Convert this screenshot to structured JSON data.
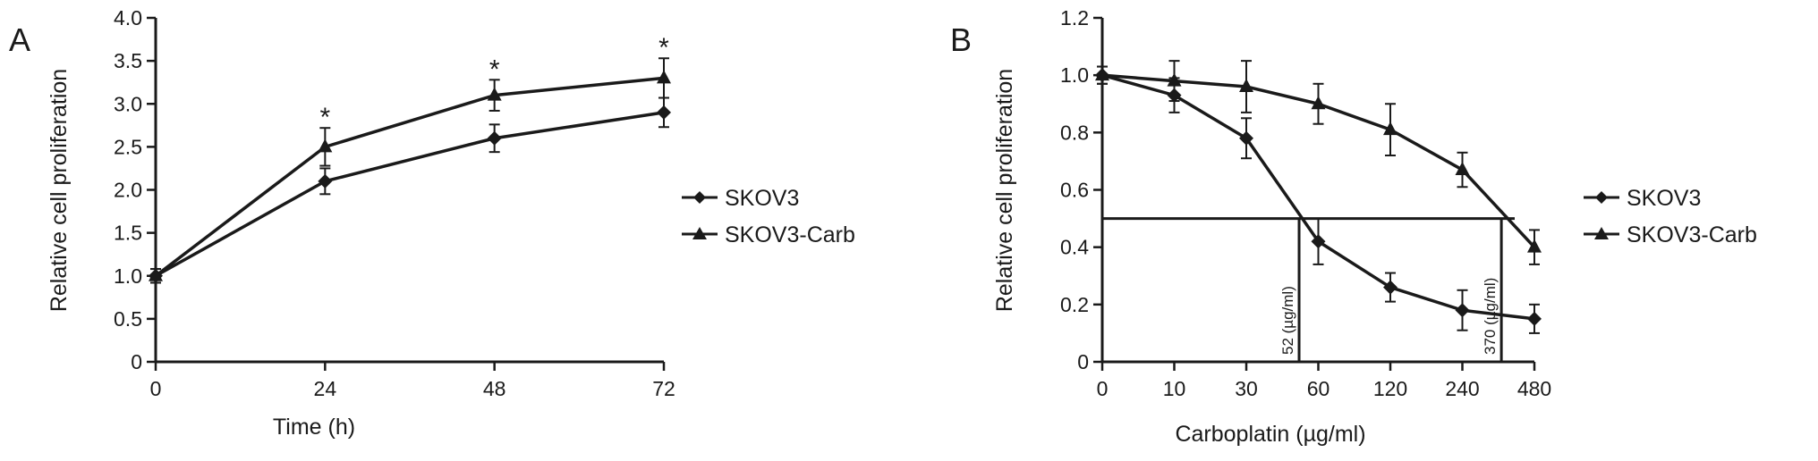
{
  "chart_data": [
    {
      "panel_label": "A",
      "type": "line",
      "xlabel": "Time (h)",
      "ylabel": "Relative cell proliferation",
      "x": [
        0,
        24,
        48,
        72
      ],
      "x_tick_labels": [
        "0",
        "24",
        "48",
        "72"
      ],
      "ylim": [
        0,
        4.0
      ],
      "y_tick_labels": [
        "0",
        "0.5",
        "1.0",
        "1.5",
        "2.0",
        "2.5",
        "3.0",
        "3.5",
        "4.0"
      ],
      "grid": false,
      "legend_position": "right",
      "series": [
        {
          "name": "SKOV3",
          "marker": "diamond",
          "values": [
            1.0,
            2.1,
            2.6,
            2.9
          ],
          "errors": [
            0.08,
            0.15,
            0.16,
            0.17
          ]
        },
        {
          "name": "SKOV3-Carb",
          "marker": "triangle",
          "values": [
            1.0,
            2.5,
            3.1,
            3.3
          ],
          "errors": [
            0.08,
            0.22,
            0.18,
            0.23
          ]
        }
      ],
      "significance": [
        {
          "x": 24,
          "label": "*"
        },
        {
          "x": 48,
          "label": "*"
        },
        {
          "x": 72,
          "label": "*"
        }
      ]
    },
    {
      "panel_label": "B",
      "type": "line",
      "xlabel": "Carboplatin (µg/ml)",
      "ylabel": "Relative cell proliferation",
      "x": [
        0,
        10,
        30,
        60,
        120,
        240,
        480
      ],
      "x_tick_labels": [
        "0",
        "10",
        "30",
        "60",
        "120",
        "240",
        "480"
      ],
      "ylim": [
        0,
        1.2
      ],
      "y_tick_labels": [
        "0",
        "0.2",
        "0.4",
        "0.6",
        "0.8",
        "1.0",
        "1.2"
      ],
      "grid": false,
      "legend_position": "right",
      "series": [
        {
          "name": "SKOV3",
          "marker": "diamond",
          "values": [
            1.0,
            0.93,
            0.78,
            0.42,
            0.26,
            0.18,
            0.15
          ],
          "errors": [
            0.03,
            0.06,
            0.07,
            0.08,
            0.05,
            0.07,
            0.05
          ]
        },
        {
          "name": "SKOV3-Carb",
          "marker": "triangle",
          "values": [
            1.0,
            0.98,
            0.96,
            0.9,
            0.81,
            0.67,
            0.4
          ],
          "errors": [
            0.03,
            0.07,
            0.09,
            0.07,
            0.09,
            0.06,
            0.06
          ]
        }
      ],
      "reference_line": {
        "y": 0.5
      },
      "annotations": [
        {
          "x_value": 52,
          "label": "52 (µg/ml)"
        },
        {
          "x_value": 370,
          "label": "370 (µg/ml)"
        }
      ]
    }
  ]
}
